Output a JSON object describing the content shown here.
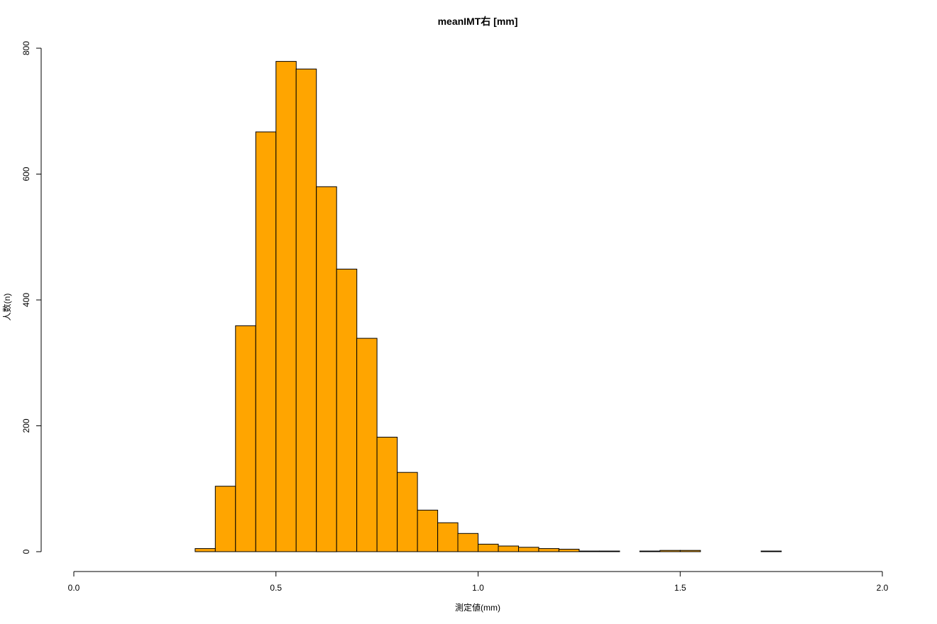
{
  "chart_data": {
    "type": "bar",
    "subtype": "histogram",
    "title": "meanIMT右 [mm]",
    "xlabel": "測定値(mm)",
    "ylabel": "人数(n)",
    "xlim": [
      0.0,
      2.0
    ],
    "ylim": [
      0,
      800
    ],
    "x_ticks": [
      0.0,
      0.5,
      1.0,
      1.5,
      2.0
    ],
    "x_tick_labels": [
      "0.0",
      "0.5",
      "1.0",
      "1.5",
      "2.0"
    ],
    "y_ticks": [
      0,
      200,
      400,
      600,
      800
    ],
    "y_tick_labels": [
      "0",
      "200",
      "400",
      "600",
      "800"
    ],
    "grid": false,
    "bar_color": "#FFA500",
    "bar_border_color": "#000000",
    "bin_width": 0.05,
    "bins": [
      {
        "start": 0.3,
        "end": 0.35,
        "count": 5
      },
      {
        "start": 0.35,
        "end": 0.4,
        "count": 104
      },
      {
        "start": 0.4,
        "end": 0.45,
        "count": 359
      },
      {
        "start": 0.45,
        "end": 0.5,
        "count": 667
      },
      {
        "start": 0.5,
        "end": 0.55,
        "count": 779
      },
      {
        "start": 0.55,
        "end": 0.6,
        "count": 767
      },
      {
        "start": 0.6,
        "end": 0.65,
        "count": 580
      },
      {
        "start": 0.65,
        "end": 0.7,
        "count": 449
      },
      {
        "start": 0.7,
        "end": 0.75,
        "count": 339
      },
      {
        "start": 0.75,
        "end": 0.8,
        "count": 182
      },
      {
        "start": 0.8,
        "end": 0.85,
        "count": 126
      },
      {
        "start": 0.85,
        "end": 0.9,
        "count": 66
      },
      {
        "start": 0.9,
        "end": 0.95,
        "count": 46
      },
      {
        "start": 0.95,
        "end": 1.0,
        "count": 29
      },
      {
        "start": 1.0,
        "end": 1.05,
        "count": 12
      },
      {
        "start": 1.05,
        "end": 1.1,
        "count": 9
      },
      {
        "start": 1.1,
        "end": 1.15,
        "count": 7
      },
      {
        "start": 1.15,
        "end": 1.2,
        "count": 5
      },
      {
        "start": 1.2,
        "end": 1.25,
        "count": 4
      },
      {
        "start": 1.25,
        "end": 1.3,
        "count": 1
      },
      {
        "start": 1.3,
        "end": 1.35,
        "count": 1
      },
      {
        "start": 1.35,
        "end": 1.4,
        "count": 0
      },
      {
        "start": 1.4,
        "end": 1.45,
        "count": 1
      },
      {
        "start": 1.45,
        "end": 1.5,
        "count": 2
      },
      {
        "start": 1.5,
        "end": 1.55,
        "count": 2
      },
      {
        "start": 1.55,
        "end": 1.6,
        "count": 0
      },
      {
        "start": 1.6,
        "end": 1.65,
        "count": 0
      },
      {
        "start": 1.65,
        "end": 1.7,
        "count": 0
      },
      {
        "start": 1.7,
        "end": 1.75,
        "count": 1
      }
    ]
  }
}
